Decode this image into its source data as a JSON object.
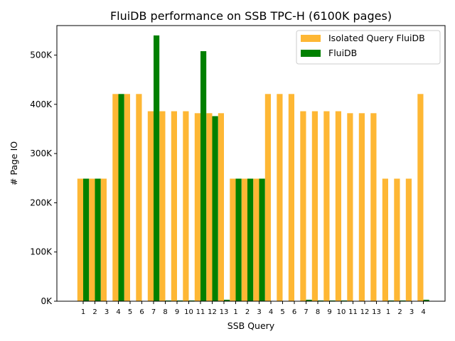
{
  "chart_data": {
    "type": "bar",
    "title": "FluiDB performance on SSB TPC-H (6100K  pages)",
    "xlabel": "SSB Query",
    "ylabel": "# Page IO",
    "ylim": [
      0,
      560000
    ],
    "yticks": [
      0,
      100000,
      200000,
      300000,
      400000,
      500000
    ],
    "ytick_labels": [
      "0K",
      "100K",
      "200K",
      "300K",
      "400K",
      "500K"
    ],
    "grid": false,
    "legend_position": "top-right",
    "categories": [
      "1",
      "2",
      "3",
      "4",
      "5",
      "6",
      "7",
      "8",
      "9",
      "10",
      "11",
      "12",
      "13",
      "1",
      "2",
      "3",
      "4",
      "5",
      "6",
      "7",
      "8",
      "9",
      "10",
      "11",
      "12",
      "13",
      "1",
      "2",
      "3",
      "4"
    ],
    "series": [
      {
        "name": "Isolated Query FluiDB",
        "color": "#feb734",
        "values": [
          249000,
          249000,
          249000,
          421000,
          421000,
          421000,
          386000,
          386000,
          386000,
          386000,
          382000,
          382000,
          382000,
          249000,
          249000,
          249000,
          421000,
          421000,
          421000,
          386000,
          386000,
          386000,
          386000,
          382000,
          382000,
          382000,
          249000,
          249000,
          249000,
          421000
        ]
      },
      {
        "name": "FluiDB",
        "color": "#008000",
        "values": [
          249000,
          249000,
          0,
          421000,
          0,
          0,
          540000,
          1500,
          1500,
          1500,
          508000,
          376000,
          3000,
          249000,
          249000,
          249000,
          0,
          0,
          0,
          3000,
          1500,
          1500,
          1500,
          0,
          0,
          0,
          1500,
          1500,
          0,
          3000
        ]
      }
    ]
  }
}
